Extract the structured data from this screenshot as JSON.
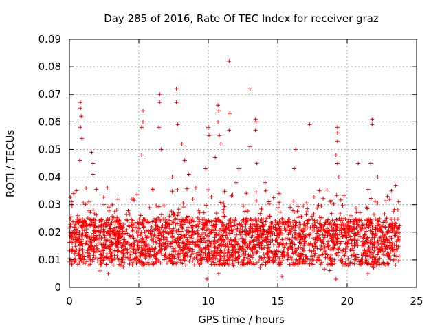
{
  "chart_data": {
    "type": "scatter",
    "title": "Day 285 of 2016, Rate Of TEC Index for receiver graz",
    "xlabel": "GPS time / hours",
    "ylabel": "ROTI / TECUs",
    "xlim": [
      0,
      25
    ],
    "ylim": [
      0,
      0.09
    ],
    "xticks": [
      0,
      5,
      10,
      15,
      20,
      25
    ],
    "xtick_labels": [
      "0",
      "5",
      "10",
      "15",
      "20",
      "25"
    ],
    "yticks": [
      0,
      0.01,
      0.02,
      0.03,
      0.04,
      0.05,
      0.06,
      0.07,
      0.08,
      0.09
    ],
    "ytick_labels": [
      "0",
      "0.01",
      "0.02",
      "0.03",
      "0.04",
      "0.05",
      "0.06",
      "0.07",
      "0.08",
      "0.09"
    ],
    "grid": true,
    "marker": "+",
    "color": "#ff0000",
    "x_data_range": [
      0,
      23.8
    ],
    "baseline_band": [
      0.008,
      0.025
    ],
    "series": [
      {
        "name": "ROTI",
        "points": [
          [
            0.8,
            0.067
          ],
          [
            0.8,
            0.065
          ],
          [
            0.85,
            0.062
          ],
          [
            0.8,
            0.058
          ],
          [
            0.75,
            0.046
          ],
          [
            0.9,
            0.054
          ],
          [
            1.6,
            0.049
          ],
          [
            1.7,
            0.045
          ],
          [
            1.7,
            0.041
          ],
          [
            0.5,
            0.035
          ],
          [
            0.3,
            0.034
          ],
          [
            1.2,
            0.036
          ],
          [
            5.3,
            0.064
          ],
          [
            5.3,
            0.06
          ],
          [
            5.2,
            0.058
          ],
          [
            5.2,
            0.048
          ],
          [
            6.5,
            0.07
          ],
          [
            6.5,
            0.067
          ],
          [
            6.45,
            0.058
          ],
          [
            6.6,
            0.05
          ],
          [
            7.7,
            0.072
          ],
          [
            7.7,
            0.067
          ],
          [
            7.8,
            0.059
          ],
          [
            8.1,
            0.052
          ],
          [
            8.3,
            0.046
          ],
          [
            10.0,
            0.058
          ],
          [
            10.05,
            0.055
          ],
          [
            10.7,
            0.066
          ],
          [
            10.75,
            0.064
          ],
          [
            10.7,
            0.06
          ],
          [
            10.8,
            0.055
          ],
          [
            10.9,
            0.052
          ],
          [
            10.5,
            0.047
          ],
          [
            11.5,
            0.082
          ],
          [
            11.55,
            0.063
          ],
          [
            11.5,
            0.057
          ],
          [
            13.0,
            0.072
          ],
          [
            13.4,
            0.061
          ],
          [
            13.45,
            0.06
          ],
          [
            13.4,
            0.057
          ],
          [
            13.0,
            0.051
          ],
          [
            13.5,
            0.045
          ],
          [
            12.2,
            0.043
          ],
          [
            16.3,
            0.05
          ],
          [
            16.2,
            0.043
          ],
          [
            17.3,
            0.059
          ],
          [
            19.3,
            0.058
          ],
          [
            19.3,
            0.056
          ],
          [
            19.3,
            0.053
          ],
          [
            19.2,
            0.048
          ],
          [
            19.3,
            0.045
          ],
          [
            19.4,
            0.04
          ],
          [
            21.8,
            0.061
          ],
          [
            21.8,
            0.059
          ],
          [
            21.7,
            0.045
          ],
          [
            20.8,
            0.045
          ],
          [
            22.2,
            0.04
          ],
          [
            23.5,
            0.037
          ],
          [
            14.1,
            0.038
          ],
          [
            7.4,
            0.04
          ],
          [
            8.6,
            0.041
          ],
          [
            9.8,
            0.043
          ],
          [
            2.5,
            0.03
          ],
          [
            3.4,
            0.028
          ],
          [
            4.5,
            0.032
          ],
          [
            12.0,
            0.038
          ],
          [
            15.1,
            0.034
          ],
          [
            18.0,
            0.035
          ],
          [
            22.9,
            0.033
          ],
          [
            0.1,
            0.01
          ],
          [
            0.15,
            0.031
          ],
          [
            23.7,
            0.031
          ],
          [
            0.3,
            0.02
          ],
          [
            1.4,
            0.008
          ],
          [
            2.2,
            0.006
          ],
          [
            2.8,
            0.005
          ],
          [
            9.9,
            0.003
          ],
          [
            15.3,
            0.004
          ],
          [
            19.2,
            0.003
          ],
          [
            21.5,
            0.005
          ]
        ]
      }
    ]
  }
}
